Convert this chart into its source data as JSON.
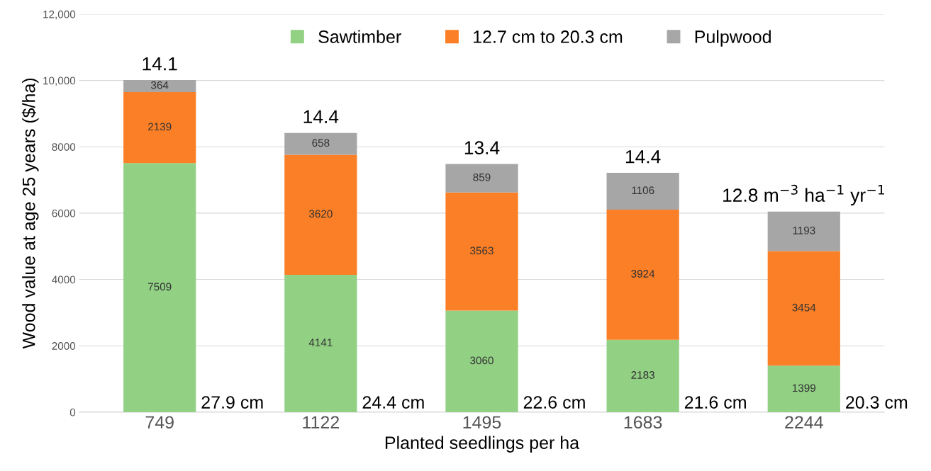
{
  "chart_data": {
    "type": "bar",
    "stacked": true,
    "xlabel": "Planted seedlings per ha",
    "ylabel": "Wood value at age 25 years ($/ha)",
    "categories": [
      "749",
      "1122",
      "1495",
      "1683",
      "2244"
    ],
    "series": [
      {
        "name": "Sawtimber",
        "color": "#92d084",
        "values": [
          7509,
          4141,
          3060,
          2183,
          1399
        ]
      },
      {
        "name": "12.7 cm to 20.3 cm",
        "color": "#fb7f26",
        "values": [
          2139,
          3620,
          3563,
          3924,
          3454
        ]
      },
      {
        "name": "Pulpwood",
        "color": "#a6a6a6",
        "values": [
          364,
          658,
          859,
          1106,
          1193
        ]
      }
    ],
    "ylim": [
      0,
      12000
    ],
    "yticks": [
      0,
      2000,
      4000,
      6000,
      8000,
      {
        "value": 10000,
        "label": "10,000"
      },
      {
        "value": 12000,
        "label": "12,000"
      }
    ],
    "grid": "y",
    "legend": "top right",
    "data_labels": true,
    "annotations": [
      {
        "text": "14.1",
        "x": "749",
        "y": 10012
      },
      {
        "text": "14.4",
        "x": "1122",
        "y": 8419
      },
      {
        "text": "13.4",
        "x": "1495",
        "y": 7482
      },
      {
        "text": "14.4",
        "x": "1683",
        "y": 7213
      },
      {
        "text": "12.8 m$^{−3}$ ha$^{−1}$ yr$^{−1}$",
        "x": "2244",
        "y": 6046
      },
      {
        "text": "27.9 cm",
        "x": "749",
        "y": 0
      },
      {
        "text": "24.4 cm",
        "x": "1122",
        "y": 0
      },
      {
        "text": "22.6 cm",
        "x": "1495",
        "y": 0
      },
      {
        "text": "21.6 cm",
        "x": "1683",
        "y": 0
      },
      {
        "text": "20.3 cm",
        "x": "2244",
        "y": 0
      }
    ]
  }
}
